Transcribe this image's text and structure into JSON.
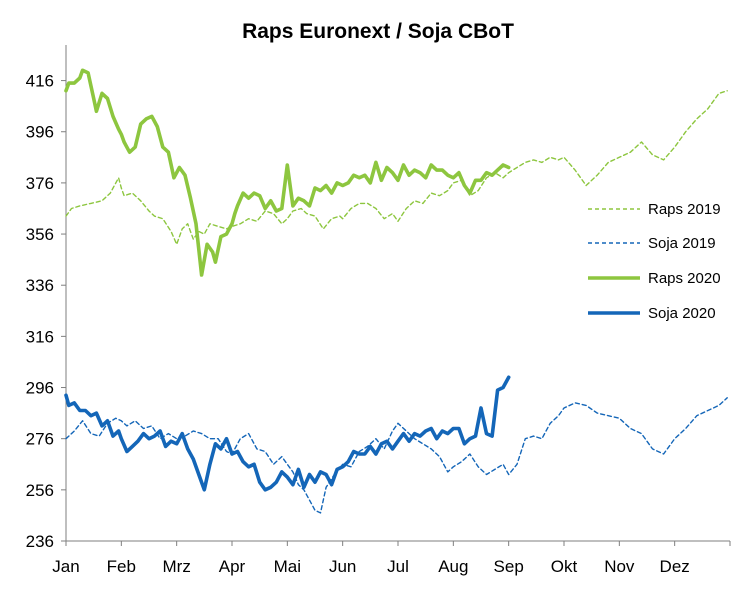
{
  "chart_data": {
    "type": "line",
    "title": "Raps Euronext / Soja CBoT",
    "xlabel": "",
    "ylabel": "",
    "ylim": [
      236,
      426
    ],
    "y_ticks": [
      236,
      256,
      276,
      296,
      316,
      336,
      356,
      376,
      396,
      416
    ],
    "x_ticks": [
      "Jan",
      "Feb",
      "Mrz",
      "Apr",
      "Mai",
      "Jun",
      "Jul",
      "Aug",
      "Sep",
      "Okt",
      "Nov",
      "Dez"
    ],
    "x_domain": [
      0,
      12
    ],
    "grid": false,
    "legend_position": "right",
    "colors": {
      "raps": "#8dc63f",
      "soja": "#1466b8",
      "axis": "#7f7f7f"
    },
    "series": [
      {
        "name": "Raps 2019",
        "style": "dashed",
        "color": "#8dc63f",
        "x": [
          0.0,
          0.1,
          0.25,
          0.45,
          0.65,
          0.8,
          0.95,
          1.0,
          1.05,
          1.2,
          1.35,
          1.5,
          1.6,
          1.75,
          1.9,
          2.0,
          2.1,
          2.2,
          2.3,
          2.4,
          2.5,
          2.6,
          2.75,
          2.9,
          3.0,
          3.15,
          3.3,
          3.45,
          3.6,
          3.75,
          3.9,
          4.0,
          4.1,
          4.25,
          4.35,
          4.5,
          4.65,
          4.8,
          4.95,
          5.0,
          5.15,
          5.3,
          5.45,
          5.6,
          5.75,
          5.9,
          6.0,
          6.15,
          6.3,
          6.45,
          6.6,
          6.75,
          6.9,
          7.0,
          7.15,
          7.3,
          7.45,
          7.6,
          7.75,
          7.9,
          8.0,
          8.15,
          8.3,
          8.45,
          8.6,
          8.75,
          8.9,
          9.0,
          9.2,
          9.4,
          9.6,
          9.8,
          10.0,
          10.2,
          10.4,
          10.6,
          10.8,
          11.0,
          11.2,
          11.4,
          11.6,
          11.8,
          11.95
        ],
        "y": [
          363,
          366,
          367,
          368,
          369,
          372,
          378,
          374,
          371,
          372,
          369,
          365,
          363,
          362,
          357,
          352,
          358,
          360,
          354,
          357,
          356,
          360,
          359,
          358,
          359,
          360,
          362,
          361,
          365,
          364,
          360,
          362,
          365,
          366,
          364,
          363,
          358,
          362,
          363,
          362,
          366,
          368,
          368,
          366,
          362,
          364,
          361,
          366,
          369,
          368,
          372,
          371,
          373,
          376,
          377,
          371,
          373,
          378,
          380,
          378,
          380,
          382,
          384,
          385,
          384,
          386,
          385,
          386,
          381,
          375,
          379,
          384,
          386,
          388,
          392,
          387,
          385,
          390,
          396,
          401,
          405,
          411,
          412
        ]
      },
      {
        "name": "Soja 2019",
        "style": "dashed",
        "color": "#1466b8",
        "x": [
          0.0,
          0.15,
          0.3,
          0.45,
          0.6,
          0.75,
          0.9,
          1.0,
          1.1,
          1.25,
          1.4,
          1.55,
          1.7,
          1.85,
          2.0,
          2.15,
          2.3,
          2.45,
          2.6,
          2.75,
          2.9,
          3.0,
          3.15,
          3.3,
          3.45,
          3.6,
          3.75,
          3.9,
          4.0,
          4.1,
          4.2,
          4.3,
          4.4,
          4.5,
          4.6,
          4.7,
          4.85,
          5.0,
          5.15,
          5.3,
          5.45,
          5.6,
          5.75,
          5.9,
          6.0,
          6.15,
          6.3,
          6.45,
          6.6,
          6.75,
          6.9,
          7.0,
          7.15,
          7.3,
          7.45,
          7.6,
          7.75,
          7.9,
          8.0,
          8.15,
          8.3,
          8.45,
          8.6,
          8.75,
          8.9,
          9.0,
          9.2,
          9.4,
          9.6,
          9.8,
          10.0,
          10.2,
          10.4,
          10.6,
          10.8,
          11.0,
          11.2,
          11.4,
          11.6,
          11.8,
          11.95
        ],
        "y": [
          276,
          279,
          283,
          278,
          277,
          282,
          284,
          283,
          281,
          283,
          280,
          281,
          276,
          278,
          276,
          277,
          279,
          278,
          276,
          276,
          271,
          270,
          276,
          278,
          272,
          271,
          266,
          269,
          266,
          263,
          258,
          256,
          252,
          248,
          247,
          257,
          262,
          266,
          265,
          271,
          273,
          276,
          272,
          279,
          282,
          279,
          276,
          274,
          272,
          269,
          263,
          265,
          267,
          270,
          265,
          262,
          264,
          266,
          262,
          266,
          276,
          277,
          276,
          282,
          285,
          288,
          290,
          289,
          286,
          285,
          284,
          280,
          278,
          272,
          270,
          276,
          280,
          285,
          287,
          289,
          292
        ]
      },
      {
        "name": "Raps 2020",
        "style": "solid",
        "color": "#8dc63f",
        "x": [
          0.0,
          0.05,
          0.15,
          0.25,
          0.3,
          0.4,
          0.5,
          0.55,
          0.65,
          0.75,
          0.85,
          0.95,
          1.0,
          1.05,
          1.15,
          1.25,
          1.35,
          1.45,
          1.55,
          1.65,
          1.75,
          1.85,
          1.95,
          2.05,
          2.15,
          2.25,
          2.35,
          2.45,
          2.55,
          2.65,
          2.7,
          2.8,
          2.9,
          2.95,
          3.0,
          3.05,
          3.1,
          3.2,
          3.3,
          3.4,
          3.5,
          3.6,
          3.7,
          3.8,
          3.9,
          4.0,
          4.1,
          4.2,
          4.3,
          4.4,
          4.5,
          4.6,
          4.7,
          4.8,
          4.9,
          5.0,
          5.1,
          5.2,
          5.3,
          5.4,
          5.5,
          5.6,
          5.7,
          5.8,
          5.9,
          6.0,
          6.1,
          6.2,
          6.3,
          6.4,
          6.5,
          6.6,
          6.7,
          6.8,
          6.9,
          7.0,
          7.1,
          7.2,
          7.3,
          7.4,
          7.5,
          7.6,
          7.7,
          7.8,
          7.9,
          8.0
        ],
        "y": [
          412,
          415,
          415,
          417,
          420,
          419,
          409,
          404,
          411,
          409,
          402,
          397,
          395,
          392,
          388,
          390,
          399,
          401,
          402,
          398,
          390,
          388,
          378,
          382,
          379,
          370,
          360,
          340,
          352,
          349,
          345,
          355,
          356,
          358,
          360,
          364,
          367,
          372,
          370,
          372,
          371,
          366,
          369,
          365,
          366,
          383,
          367,
          370,
          369,
          367,
          374,
          373,
          375,
          372,
          376,
          375,
          376,
          379,
          378,
          379,
          376,
          384,
          377,
          382,
          380,
          377,
          383,
          379,
          381,
          380,
          378,
          383,
          381,
          381,
          379,
          378,
          380,
          375,
          372,
          377,
          377,
          380,
          379,
          381,
          383,
          382
        ]
      },
      {
        "name": "Soja 2020",
        "style": "solid",
        "color": "#1466b8",
        "x": [
          0.0,
          0.05,
          0.15,
          0.25,
          0.35,
          0.45,
          0.55,
          0.65,
          0.75,
          0.85,
          0.95,
          1.0,
          1.1,
          1.2,
          1.3,
          1.4,
          1.5,
          1.6,
          1.7,
          1.8,
          1.9,
          2.0,
          2.1,
          2.2,
          2.3,
          2.4,
          2.5,
          2.6,
          2.7,
          2.8,
          2.9,
          3.0,
          3.1,
          3.2,
          3.3,
          3.4,
          3.5,
          3.6,
          3.7,
          3.8,
          3.9,
          4.0,
          4.1,
          4.2,
          4.3,
          4.4,
          4.5,
          4.6,
          4.7,
          4.8,
          4.9,
          5.0,
          5.1,
          5.2,
          5.3,
          5.4,
          5.5,
          5.6,
          5.7,
          5.8,
          5.9,
          6.0,
          6.1,
          6.2,
          6.3,
          6.4,
          6.5,
          6.6,
          6.7,
          6.8,
          6.9,
          7.0,
          7.1,
          7.2,
          7.3,
          7.4,
          7.5,
          7.6,
          7.7,
          7.8,
          7.9,
          8.0
        ],
        "y": [
          293,
          289,
          290,
          287,
          287,
          285,
          286,
          281,
          283,
          277,
          279,
          276,
          271,
          273,
          275,
          278,
          276,
          277,
          279,
          273,
          275,
          274,
          278,
          272,
          268,
          262,
          256,
          266,
          274,
          272,
          276,
          270,
          271,
          267,
          265,
          266,
          259,
          256,
          257,
          259,
          263,
          261,
          258,
          264,
          257,
          262,
          259,
          263,
          262,
          258,
          264,
          265,
          267,
          271,
          270,
          270,
          273,
          270,
          274,
          275,
          272,
          275,
          278,
          275,
          278,
          277,
          279,
          280,
          276,
          279,
          278,
          280,
          280,
          274,
          276,
          277,
          288,
          278,
          277,
          295,
          296,
          300
        ]
      }
    ]
  }
}
